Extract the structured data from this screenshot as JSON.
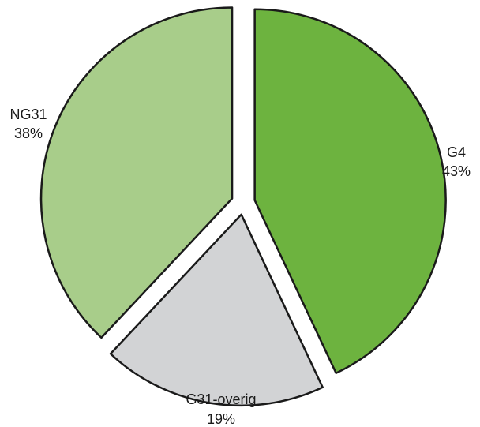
{
  "chart_data": {
    "type": "pie",
    "title": "",
    "slices": [
      {
        "label": "G4",
        "value": 43,
        "value_label": "43%",
        "color": "#6db33f"
      },
      {
        "label": "G31-overig",
        "value": 19,
        "value_label": "19%",
        "color": "#d2d3d5"
      },
      {
        "label": "NG31",
        "value": 38,
        "value_label": "38%",
        "color": "#a8cd8a"
      }
    ],
    "start_angle": "12 o'clock",
    "direction": "clockwise",
    "exploded": true,
    "legend": "none"
  }
}
